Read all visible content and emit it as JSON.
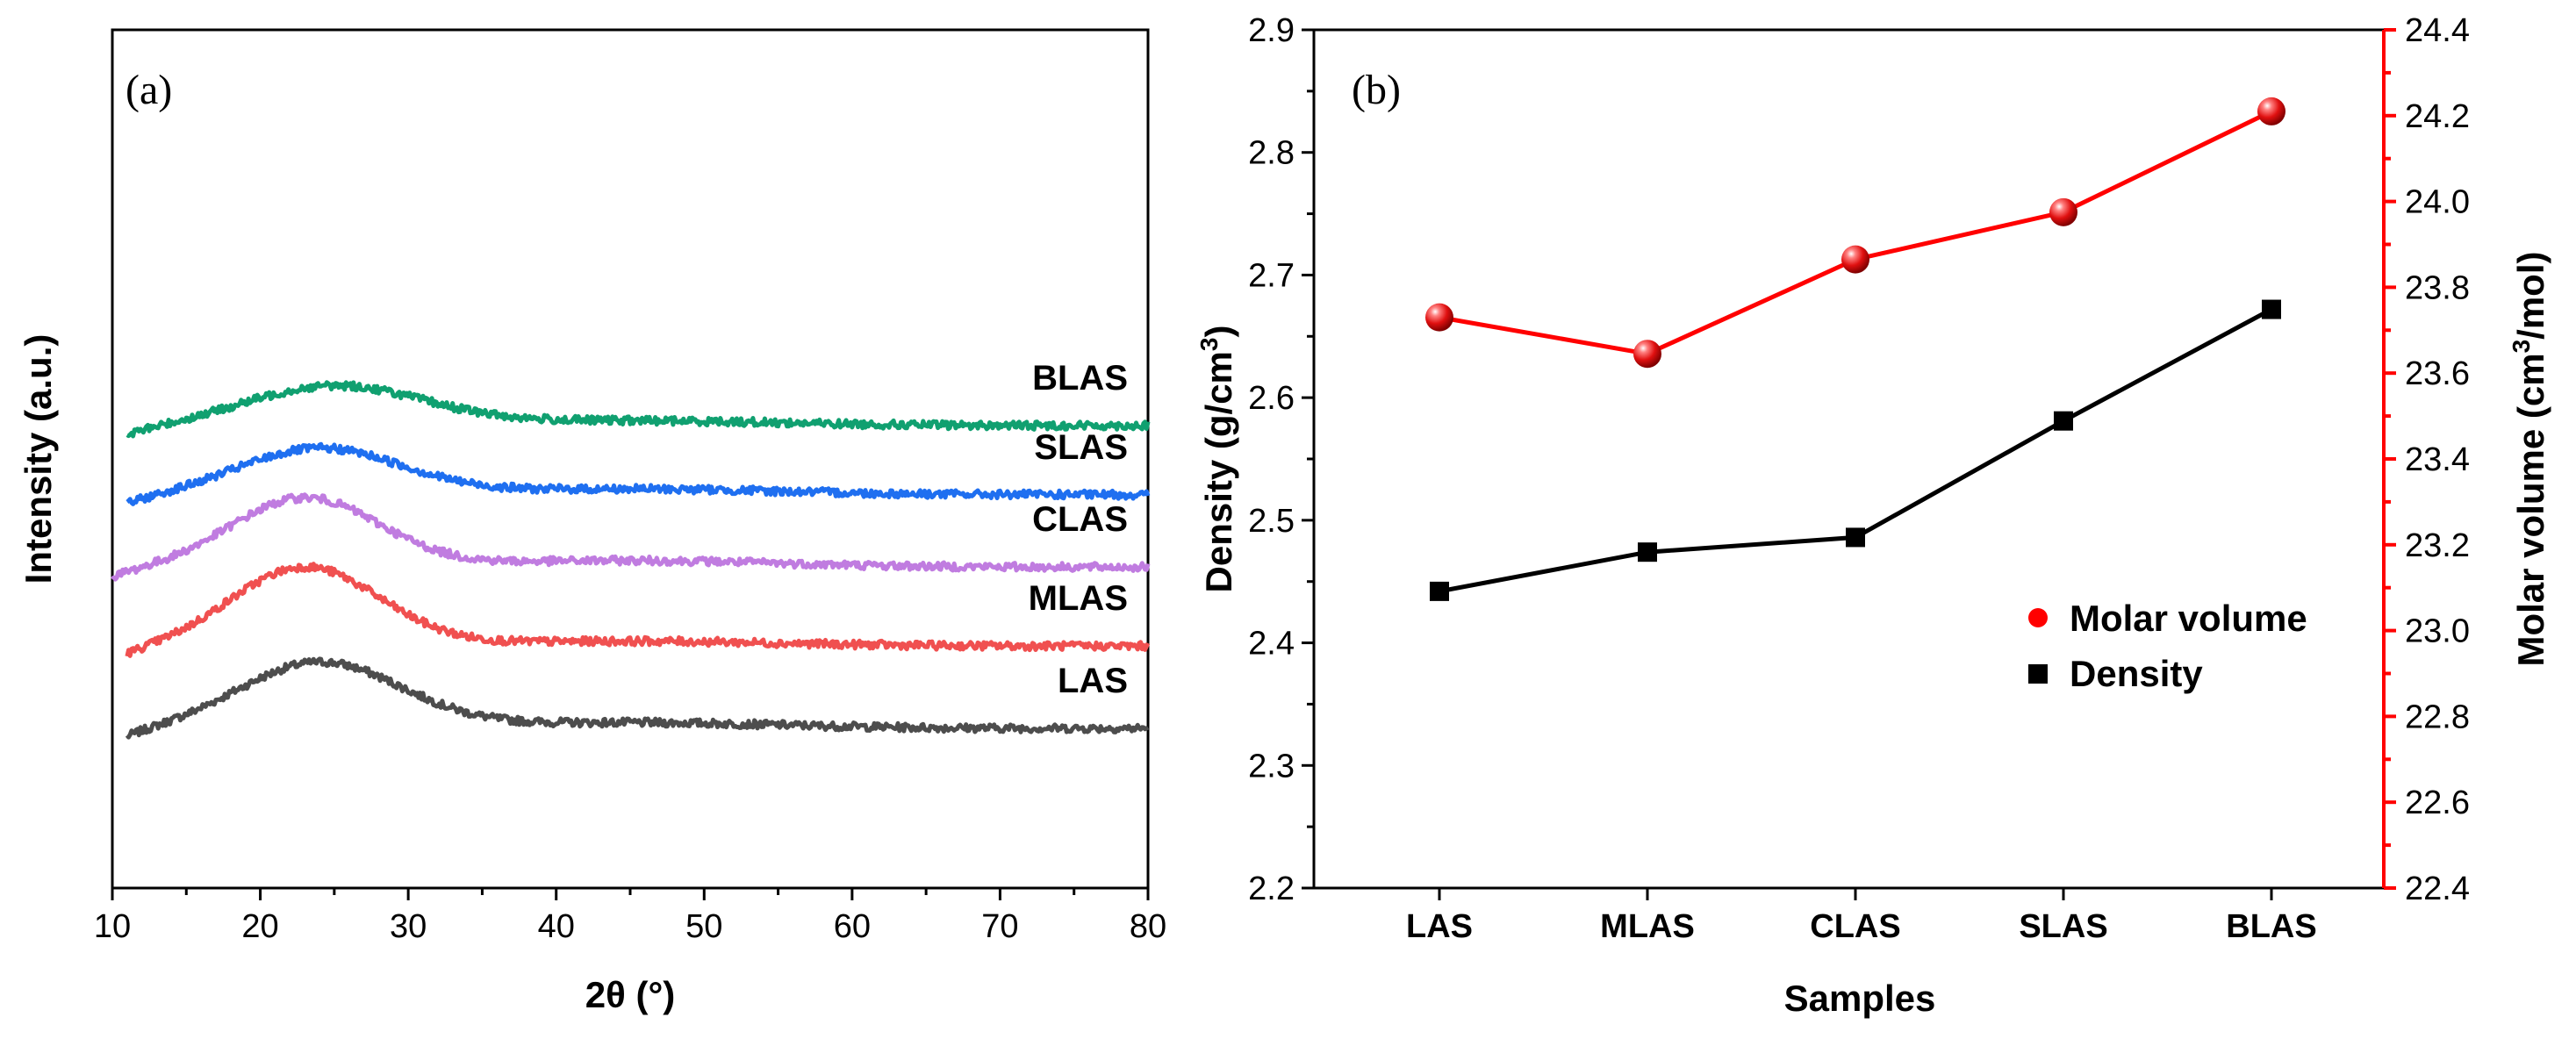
{
  "chart_data": [
    {
      "panel": "(a)",
      "type": "line",
      "title": "",
      "xlabel": "2θ (°)",
      "ylabel": "Intensity (a.u.)",
      "xlim": [
        10,
        80
      ],
      "xticks": [
        10,
        20,
        30,
        40,
        50,
        60,
        70,
        80
      ],
      "y_ticks_shown": false,
      "series": [
        {
          "name": "LAS",
          "color": "#4d4d4d",
          "x_start": 11,
          "x_end": 80,
          "peak_2theta": 24,
          "baseline": 0.6,
          "peak_height": 1.0,
          "peak_width": 5.5,
          "tail": 0.35,
          "offset": 0.0
        },
        {
          "name": "MLAS",
          "color": "#f05050",
          "x_start": 11,
          "x_end": 80,
          "peak_2theta": 23,
          "baseline": 0.6,
          "peak_height": 1.2,
          "peak_width": 5.0,
          "tail": 0.3,
          "offset": 1.25
        },
        {
          "name": "CLAS",
          "color": "#c07ce0",
          "x_start": 10,
          "x_end": 80,
          "peak_2theta": 23,
          "baseline": 0.6,
          "peak_height": 1.05,
          "peak_width": 5.0,
          "tail": 0.4,
          "offset": 2.45
        },
        {
          "name": "SLAS",
          "color": "#1f6ff0",
          "x_start": 11,
          "x_end": 80,
          "peak_2theta": 24,
          "baseline": 0.6,
          "peak_height": 0.7,
          "peak_width": 5.5,
          "tail": 0.35,
          "offset": 3.55
        },
        {
          "name": "BLAS",
          "color": "#10a070",
          "x_start": 11,
          "x_end": 80,
          "peak_2theta": 25,
          "baseline": 0.6,
          "peak_height": 0.6,
          "peak_width": 6.0,
          "tail": 0.3,
          "offset": 4.6
        }
      ]
    },
    {
      "panel": "(b)",
      "type": "line",
      "title": "",
      "xlabel": "Samples",
      "categories": [
        "LAS",
        "MLAS",
        "CLAS",
        "SLAS",
        "BLAS"
      ],
      "ylabel_left": "Density (g/cm",
      "ylabel_left_sup": "3",
      "ylabel_left_end": ")",
      "ylim_left": [
        2.2,
        2.9
      ],
      "yticks_left": [
        "2.2",
        "2.3",
        "2.4",
        "2.5",
        "2.6",
        "2.7",
        "2.8",
        "2.9"
      ],
      "ylabel_right": "Molar volume (cm",
      "ylabel_right_sup": "3",
      "ylabel_right_end": "/mol)",
      "ylim_right": [
        22.4,
        24.4
      ],
      "yticks_right": [
        "22.4",
        "22.6",
        "22.8",
        "23.0",
        "23.2",
        "23.4",
        "23.6",
        "23.8",
        "24.0",
        "24.2",
        "24.4"
      ],
      "series": [
        {
          "name": "Molar volume",
          "axis": "right",
          "color": "#ff0000",
          "marker": "sphere",
          "values": [
            23.73,
            23.645,
            23.865,
            23.975,
            24.21
          ]
        },
        {
          "name": "Density",
          "axis": "left",
          "color": "#000000",
          "marker": "square",
          "values": [
            2.442,
            2.474,
            2.486,
            2.581,
            2.672
          ]
        }
      ],
      "legend_order": [
        "Molar volume",
        "Density"
      ],
      "legend_position": "middle-right"
    }
  ]
}
